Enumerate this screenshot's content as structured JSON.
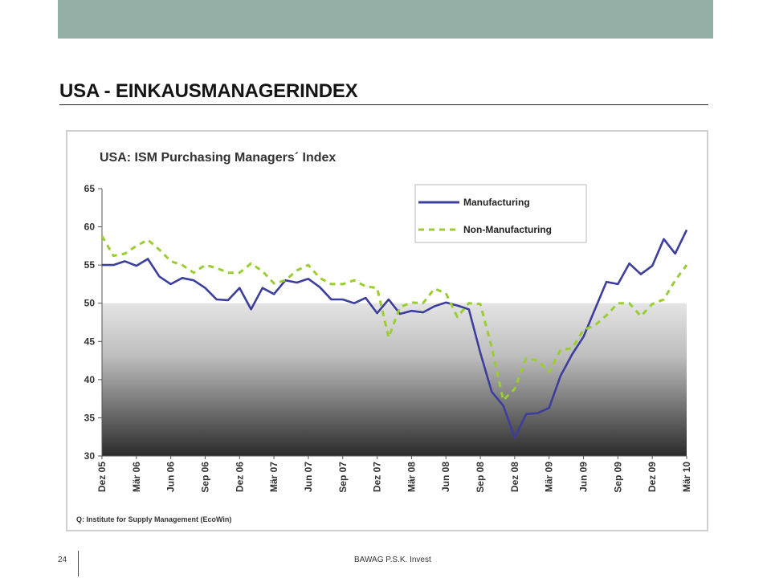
{
  "slide": {
    "title": "USA - EINKAUSMANAGERINDEX",
    "page_number": "24",
    "organization": "BAWAG P.S.K. Invest"
  },
  "chart_data": {
    "type": "line",
    "title": "USA: ISM Purchasing Managers´ Index",
    "source": "Q: Institute for Supply Management (EcoWin)",
    "ylim": [
      30,
      65
    ],
    "yticks": [
      30,
      35,
      40,
      45,
      50,
      55,
      60,
      65
    ],
    "shaded_region_below": 50,
    "legend_position": "top-right",
    "xtick_labels": [
      "Dez 05",
      "Mär 06",
      "Jun 06",
      "Sep 06",
      "Dez 06",
      "Mär 07",
      "Jun 07",
      "Sep 07",
      "Dez 07",
      "Mär 08",
      "Jun 08",
      "Sep 08",
      "Dez 08",
      "Mär 09",
      "Jun 09",
      "Sep 09",
      "Dez 09",
      "Mär 10"
    ],
    "x": [
      "Dez 05",
      "Jan 06",
      "Feb 06",
      "Mär 06",
      "Apr 06",
      "Mai 06",
      "Jun 06",
      "Jul 06",
      "Aug 06",
      "Sep 06",
      "Okt 06",
      "Nov 06",
      "Dez 06",
      "Jan 07",
      "Feb 07",
      "Mär 07",
      "Apr 07",
      "Mai 07",
      "Jun 07",
      "Jul 07",
      "Aug 07",
      "Sep 07",
      "Okt 07",
      "Nov 07",
      "Dez 07",
      "Jan 08",
      "Feb 08",
      "Mär 08",
      "Apr 08",
      "Mai 08",
      "Jun 08",
      "Jul 08",
      "Aug 08",
      "Sep 08",
      "Okt 08",
      "Nov 08",
      "Dez 08",
      "Jan 09",
      "Feb 09",
      "Mär 09",
      "Apr 09",
      "Mai 09",
      "Jun 09",
      "Jul 09",
      "Aug 09",
      "Sep 09",
      "Okt 09",
      "Nov 09",
      "Dez 09",
      "Jan 10",
      "Feb 10",
      "Mär 10"
    ],
    "series": [
      {
        "name": "Manufacturing",
        "color": "#3b3e9c",
        "style": "solid",
        "values": [
          55.0,
          55.0,
          55.5,
          54.9,
          55.8,
          53.5,
          52.5,
          53.3,
          53.0,
          52.0,
          50.5,
          50.4,
          52.0,
          49.2,
          52.0,
          51.2,
          53.0,
          52.7,
          53.2,
          52.1,
          50.5,
          50.5,
          50.0,
          50.7,
          48.7,
          50.5,
          48.6,
          49.0,
          48.8,
          49.6,
          50.1,
          49.7,
          49.2,
          43.5,
          38.4,
          36.6,
          32.4,
          35.5,
          35.6,
          36.3,
          40.5,
          43.3,
          45.6,
          49.2,
          52.8,
          52.5,
          55.2,
          53.8,
          54.9,
          58.4,
          56.5,
          59.6
        ]
      },
      {
        "name": "Non-Manufacturing",
        "color": "#9acd32",
        "style": "dashed",
        "values": [
          58.8,
          56.2,
          56.5,
          57.5,
          58.3,
          57.0,
          55.5,
          55.0,
          54.0,
          55.0,
          54.6,
          54.0,
          54.0,
          55.2,
          54.2,
          52.6,
          53.0,
          54.3,
          55.0,
          53.3,
          52.5,
          52.5,
          53.0,
          52.2,
          52.0,
          45.5,
          49.5,
          50.1,
          50.0,
          51.9,
          51.3,
          48.2,
          50.0,
          49.9,
          44.2,
          37.3,
          38.8,
          42.8,
          42.5,
          41.0,
          43.9,
          44.1,
          46.5,
          47.1,
          48.4,
          50.0,
          50.0,
          48.3,
          49.9,
          50.5,
          53.0,
          55.0
        ]
      }
    ]
  }
}
